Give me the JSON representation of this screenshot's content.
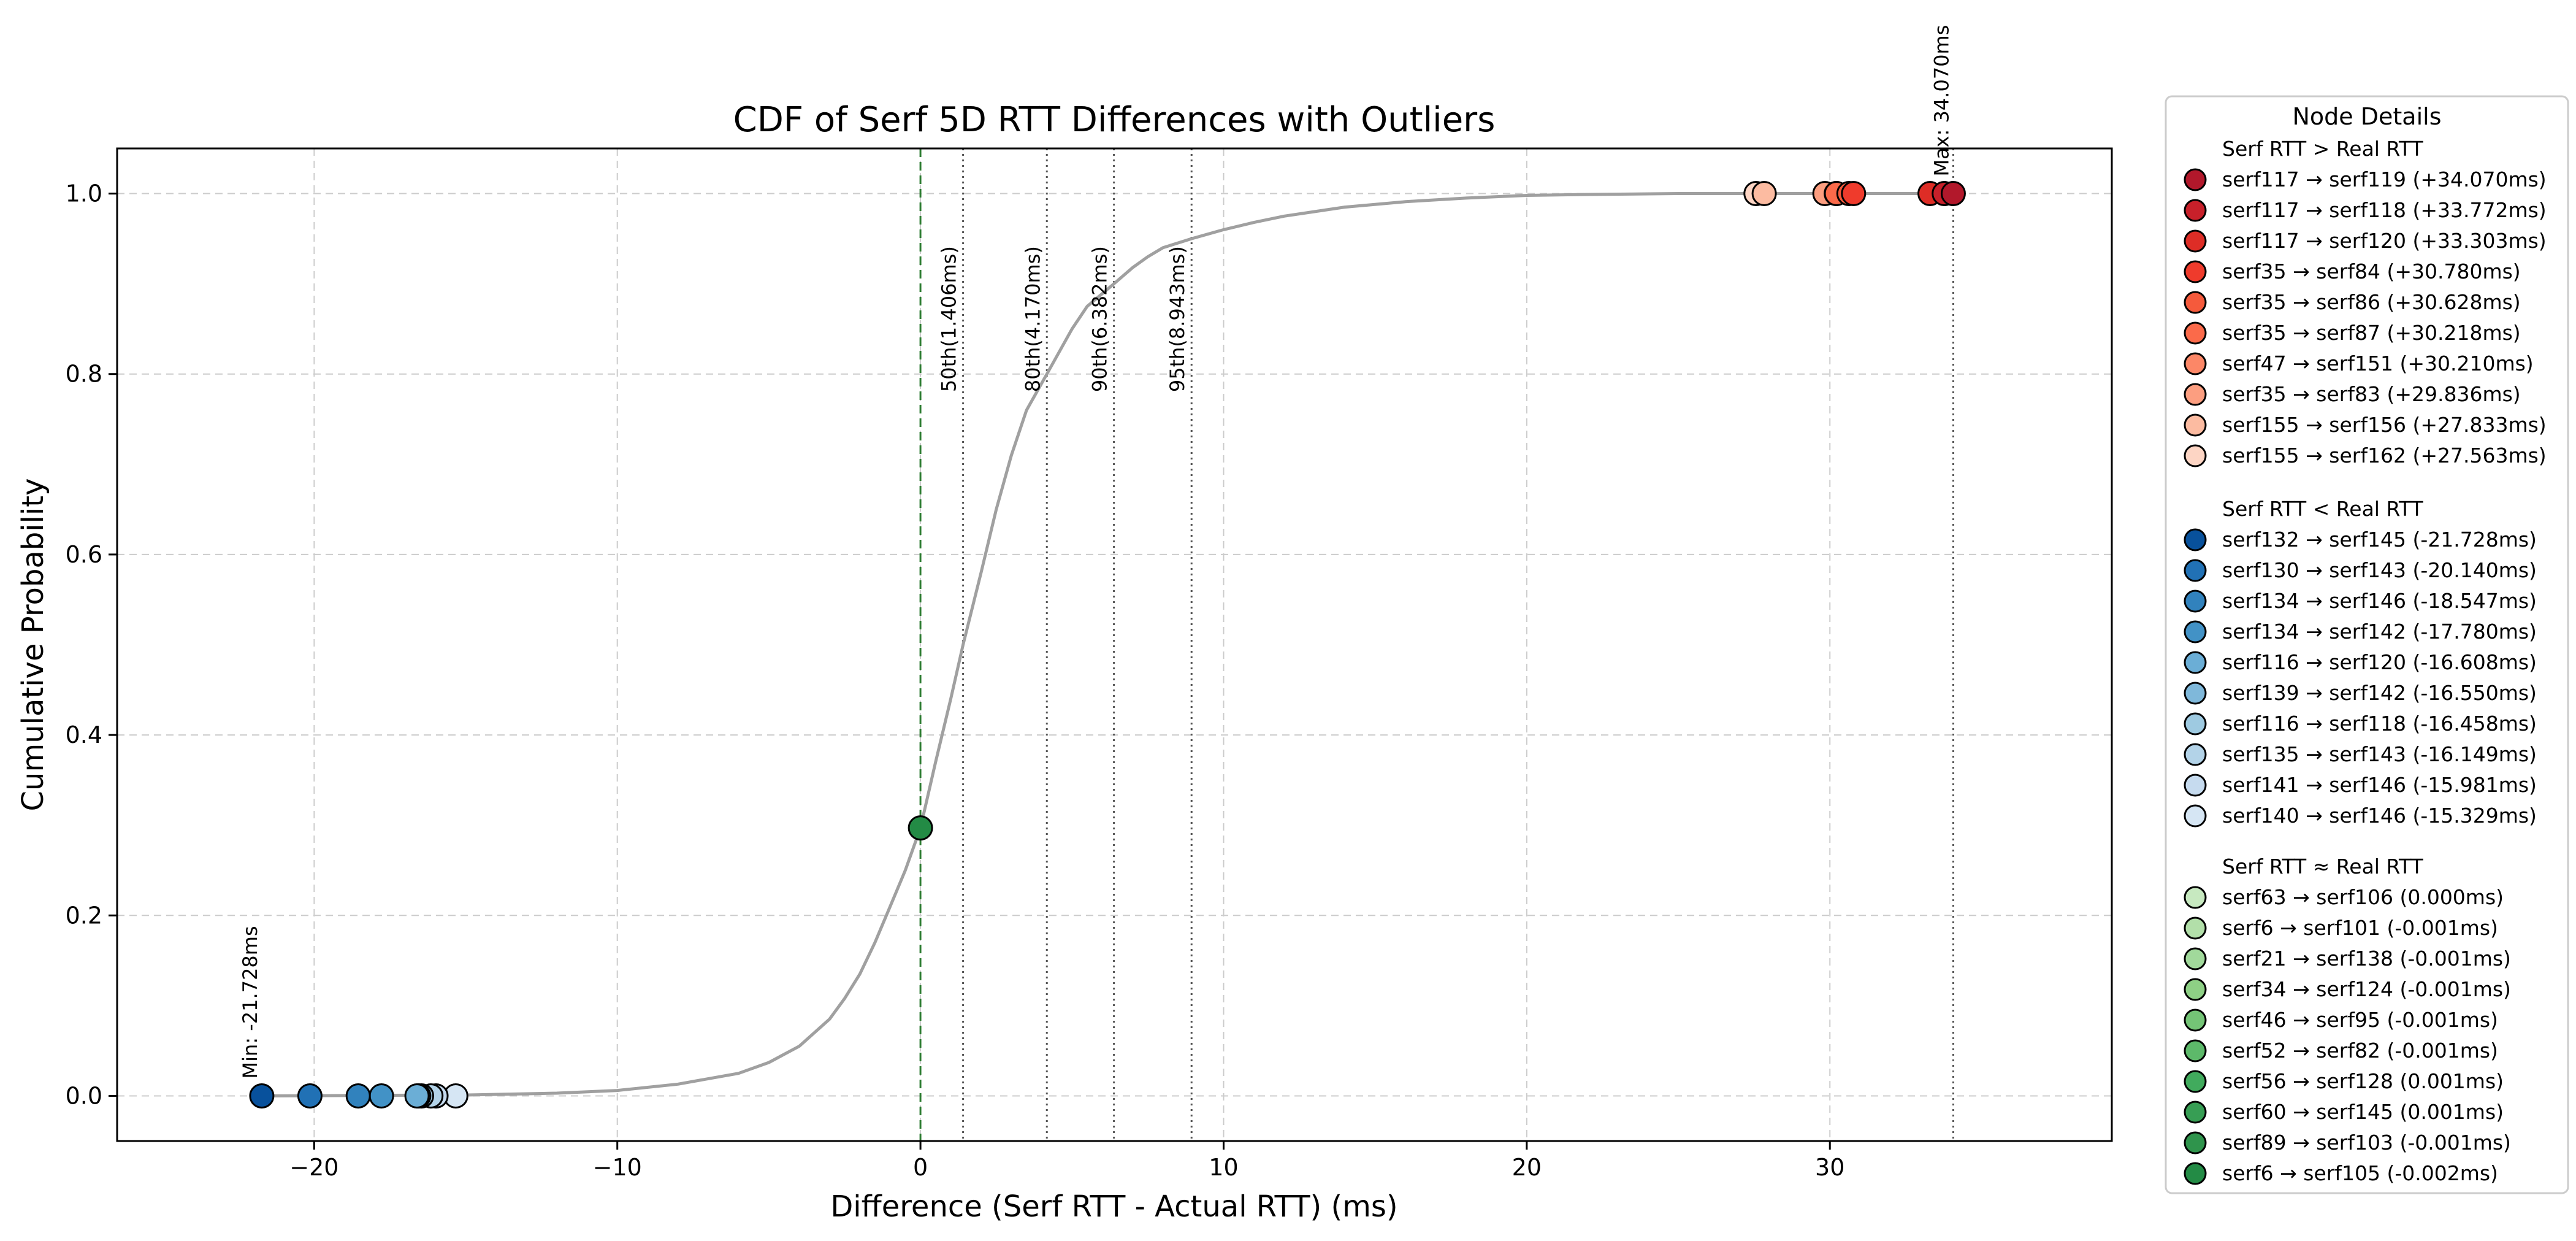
{
  "chart_data": {
    "type": "line",
    "title": "CDF of Serf 5D RTT Differences with Outliers",
    "xlabel": "Difference (Serf RTT - Actual RTT) (ms)",
    "ylabel": "Cumulative Probability",
    "xlim": [
      -26.5,
      39.3
    ],
    "ylim": [
      -0.05,
      1.05
    ],
    "xticks": [
      -20,
      -10,
      0,
      10,
      20,
      30
    ],
    "yticks": [
      0.0,
      0.2,
      0.4,
      0.6,
      0.8,
      1.0
    ],
    "xtick_labels": [
      "−20",
      "−10",
      "0",
      "10",
      "20",
      "30"
    ],
    "ytick_labels": [
      "0.0",
      "0.2",
      "0.4",
      "0.6",
      "0.8",
      "1.0"
    ],
    "grid": true,
    "cdf_line_color": "#a0a0a0",
    "cdf_curve": {
      "x": [
        -21.728,
        -15.0,
        -12.0,
        -10.0,
        -8.0,
        -6.0,
        -5.0,
        -4.0,
        -3.0,
        -2.5,
        -2.0,
        -1.5,
        -1.0,
        -0.5,
        0.0,
        0.5,
        1.0,
        1.406,
        2.0,
        2.5,
        3.0,
        3.5,
        4.17,
        5.0,
        5.5,
        6.382,
        7.0,
        7.5,
        8.0,
        8.943,
        10.0,
        11.0,
        12.0,
        14.0,
        16.0,
        18.0,
        20.0,
        22.0,
        25.0,
        27.563,
        30.0,
        34.07
      ],
      "y": [
        0.0,
        0.001,
        0.003,
        0.006,
        0.013,
        0.025,
        0.037,
        0.055,
        0.085,
        0.108,
        0.135,
        0.17,
        0.21,
        0.25,
        0.297,
        0.37,
        0.44,
        0.5,
        0.58,
        0.65,
        0.71,
        0.76,
        0.8,
        0.85,
        0.875,
        0.9,
        0.918,
        0.93,
        0.94,
        0.95,
        0.96,
        0.968,
        0.975,
        0.985,
        0.991,
        0.995,
        0.998,
        0.999,
        1.0,
        1.0,
        1.0,
        1.0
      ]
    },
    "zero_line": {
      "x": 0,
      "color": "#2e7d32"
    },
    "percentiles": [
      {
        "label": "50th(1.406ms)",
        "x": 1.406
      },
      {
        "label": "80th(4.170ms)",
        "x": 4.17
      },
      {
        "label": "90th(6.382ms)",
        "x": 6.382
      },
      {
        "label": "95th(8.943ms)",
        "x": 8.943
      }
    ],
    "max_line": {
      "x": 34.07,
      "label": "Max: 34.070ms"
    },
    "min_annotation": {
      "x": -21.728,
      "label": "Min: -21.728ms"
    },
    "marker_at_zero": {
      "x": 0.0,
      "y": 0.297,
      "color": "#238b45"
    },
    "outliers_over": {
      "heading": "Serf RTT > Real RTT",
      "points": [
        {
          "label": "serf117 → serf119 (+34.070ms)",
          "x": 34.07,
          "y": 1.0,
          "color": "#b2182b"
        },
        {
          "label": "serf117 → serf118 (+33.772ms)",
          "x": 33.772,
          "y": 1.0,
          "color": "#c8202a"
        },
        {
          "label": "serf117 → serf120 (+33.303ms)",
          "x": 33.303,
          "y": 1.0,
          "color": "#de2d26"
        },
        {
          "label": "serf35 → serf84 (+30.780ms)",
          "x": 30.78,
          "y": 1.0,
          "color": "#ef3b2c"
        },
        {
          "label": "serf35 → serf86 (+30.628ms)",
          "x": 30.628,
          "y": 1.0,
          "color": "#f55a3c"
        },
        {
          "label": "serf35 → serf87 (+30.218ms)",
          "x": 30.218,
          "y": 1.0,
          "color": "#fb6a4a"
        },
        {
          "label": "serf47 → serf151 (+30.210ms)",
          "x": 30.21,
          "y": 1.0,
          "color": "#fc8767"
        },
        {
          "label": "serf35 → serf83 (+29.836ms)",
          "x": 29.836,
          "y": 1.0,
          "color": "#fc9e80"
        },
        {
          "label": "serf155 → serf156 (+27.833ms)",
          "x": 27.833,
          "y": 1.0,
          "color": "#fcbba1"
        },
        {
          "label": "serf155 → serf162 (+27.563ms)",
          "x": 27.563,
          "y": 1.0,
          "color": "#fdd5c4"
        }
      ]
    },
    "outliers_under": {
      "heading": "Serf RTT < Real RTT",
      "points": [
        {
          "label": "serf132 → serf145 (-21.728ms)",
          "x": -21.728,
          "y": 0.0,
          "color": "#08519c"
        },
        {
          "label": "serf130 → serf143 (-20.140ms)",
          "x": -20.14,
          "y": 0.0,
          "color": "#2171b5"
        },
        {
          "label": "serf134 → serf146 (-18.547ms)",
          "x": -18.547,
          "y": 0.0,
          "color": "#3182bd"
        },
        {
          "label": "serf134 → serf142 (-17.780ms)",
          "x": -17.78,
          "y": 0.0,
          "color": "#4292c6"
        },
        {
          "label": "serf116 → serf120 (-16.608ms)",
          "x": -16.608,
          "y": 0.0,
          "color": "#6baed6"
        },
        {
          "label": "serf139 → serf142 (-16.550ms)",
          "x": -16.55,
          "y": 0.0,
          "color": "#7fb8da"
        },
        {
          "label": "serf116 → serf118 (-16.458ms)",
          "x": -16.458,
          "y": 0.0,
          "color": "#9ecae1"
        },
        {
          "label": "serf135 → serf143 (-16.149ms)",
          "x": -16.149,
          "y": 0.0,
          "color": "#b3d3e8"
        },
        {
          "label": "serf141 → serf146 (-15.981ms)",
          "x": -15.981,
          "y": 0.0,
          "color": "#c6dbef"
        },
        {
          "label": "serf140 → serf146 (-15.329ms)",
          "x": -15.329,
          "y": 0.0,
          "color": "#d6e6f4"
        }
      ]
    },
    "outliers_near_zero": {
      "heading": "Serf RTT ≈ Real RTT",
      "points": [
        {
          "label": "serf63 → serf106 (0.000ms)",
          "x": 0.0,
          "color": "#c7e9c0"
        },
        {
          "label": "serf6 → serf101 (-0.001ms)",
          "x": -0.001,
          "color": "#b2dfa9"
        },
        {
          "label": "serf21 → serf138 (-0.001ms)",
          "x": -0.001,
          "color": "#a1d99b"
        },
        {
          "label": "serf34 → serf124 (-0.001ms)",
          "x": -0.001,
          "color": "#8ed085"
        },
        {
          "label": "serf46 → serf95 (-0.001ms)",
          "x": -0.001,
          "color": "#74c476"
        },
        {
          "label": "serf52 → serf82 (-0.001ms)",
          "x": -0.001,
          "color": "#5db96a"
        },
        {
          "label": "serf56 → serf128 (0.001ms)",
          "x": 0.001,
          "color": "#41ab5d"
        },
        {
          "label": "serf60 → serf145 (0.001ms)",
          "x": 0.001,
          "color": "#379e54"
        },
        {
          "label": "serf89 → serf103 (-0.001ms)",
          "x": -0.001,
          "color": "#2f944c"
        },
        {
          "label": "serf6 → serf105 (-0.002ms)",
          "x": -0.002,
          "color": "#238b45"
        }
      ]
    },
    "legend_title": "Node Details",
    "legend_placement": "outside-right"
  }
}
